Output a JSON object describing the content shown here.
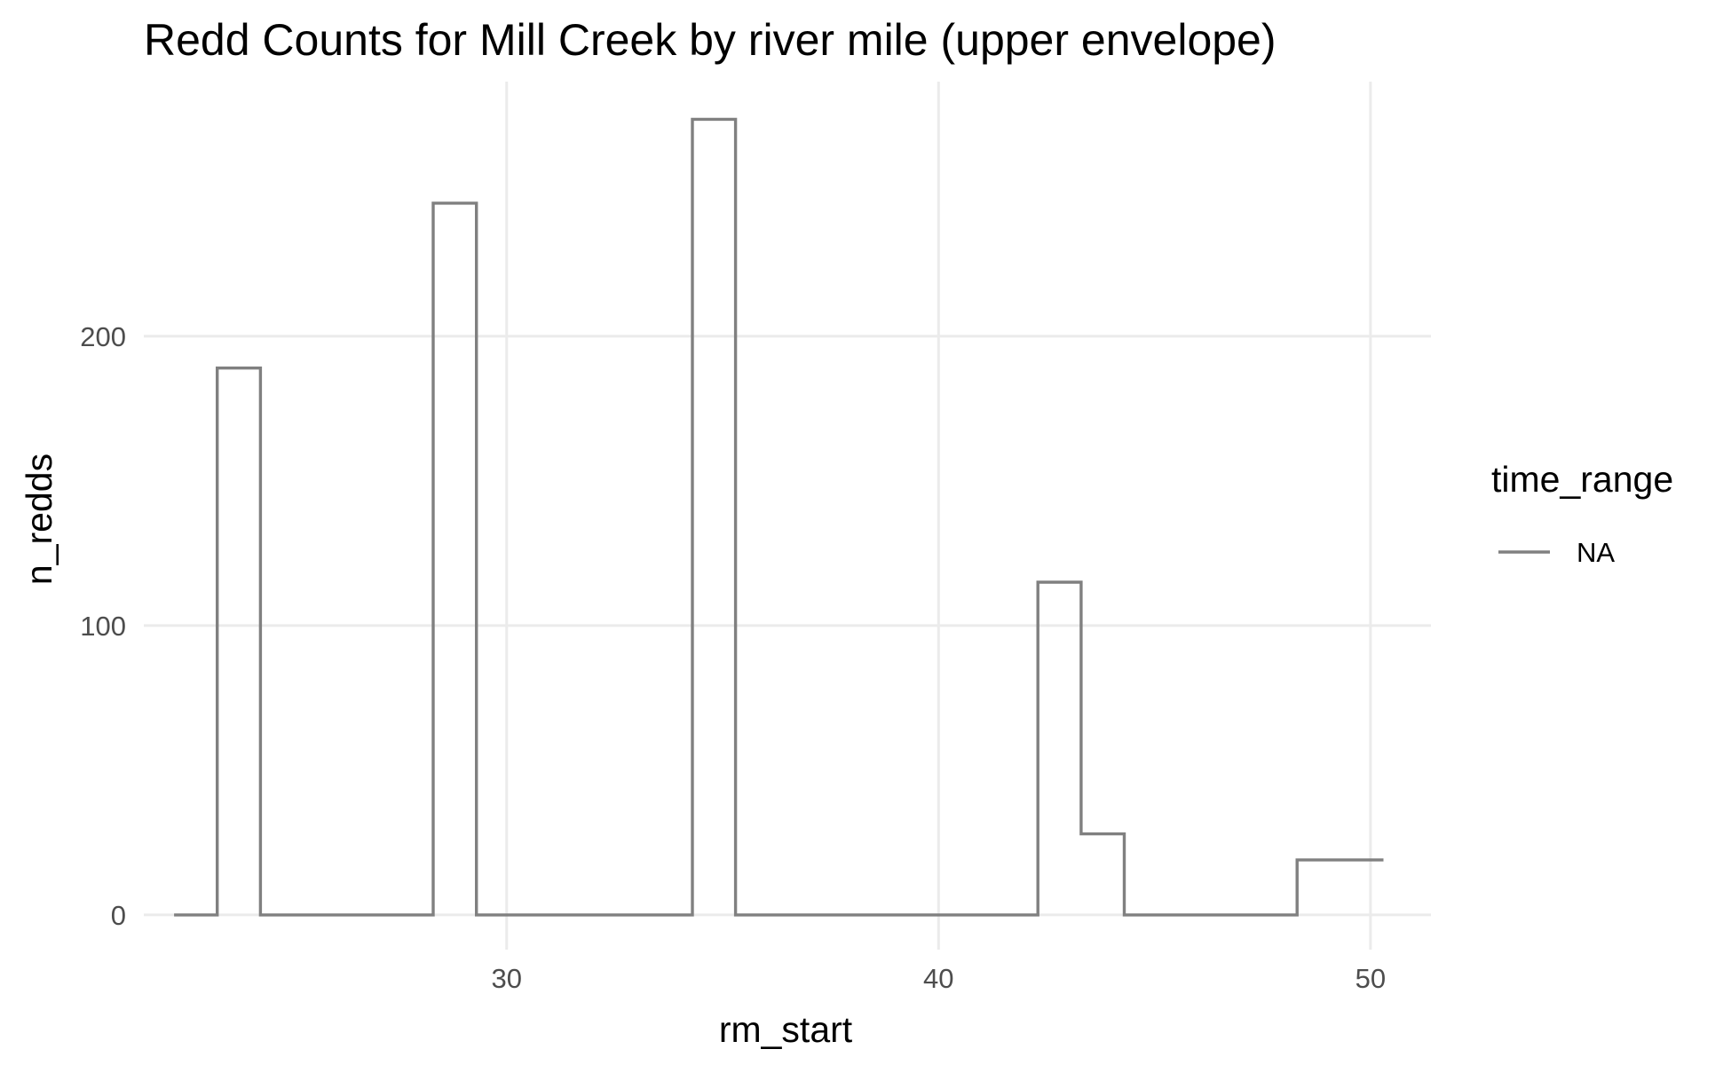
{
  "chart_data": {
    "type": "line",
    "subtype": "step",
    "title": "Redd Counts for Mill Creek by river mile (upper envelope)",
    "xlabel": "rm_start",
    "ylabel": "n_redds",
    "xlim": [
      21.6,
      51.4
    ],
    "ylim": [
      -12,
      288
    ],
    "x_ticks": [
      30,
      40,
      50
    ],
    "y_ticks": [
      0,
      100,
      200
    ],
    "grid": true,
    "legend": {
      "title": "time_range",
      "position": "right",
      "entries": [
        {
          "label": "NA",
          "color": "#808080"
        }
      ]
    },
    "series": [
      {
        "name": "NA",
        "color": "#808080",
        "points": [
          {
            "x": 22.3,
            "y": 0
          },
          {
            "x": 23.3,
            "y": 189
          },
          {
            "x": 24.3,
            "y": 0
          },
          {
            "x": 25.3,
            "y": 0
          },
          {
            "x": 26.3,
            "y": 0
          },
          {
            "x": 27.3,
            "y": 0
          },
          {
            "x": 28.3,
            "y": 246
          },
          {
            "x": 29.3,
            "y": 0
          },
          {
            "x": 30.3,
            "y": 0
          },
          {
            "x": 31.3,
            "y": 0
          },
          {
            "x": 32.3,
            "y": 0
          },
          {
            "x": 33.3,
            "y": 0
          },
          {
            "x": 34.3,
            "y": 275
          },
          {
            "x": 35.3,
            "y": 0
          },
          {
            "x": 36.3,
            "y": 0
          },
          {
            "x": 37.3,
            "y": 0
          },
          {
            "x": 38.3,
            "y": 0
          },
          {
            "x": 39.3,
            "y": 0
          },
          {
            "x": 40.3,
            "y": 0
          },
          {
            "x": 41.3,
            "y": 0
          },
          {
            "x": 42.3,
            "y": 115
          },
          {
            "x": 43.3,
            "y": 28
          },
          {
            "x": 44.3,
            "y": 0
          },
          {
            "x": 45.3,
            "y": 0
          },
          {
            "x": 46.3,
            "y": 0
          },
          {
            "x": 47.3,
            "y": 0
          },
          {
            "x": 48.3,
            "y": 19
          },
          {
            "x": 49.3,
            "y": 19
          }
        ]
      }
    ]
  }
}
